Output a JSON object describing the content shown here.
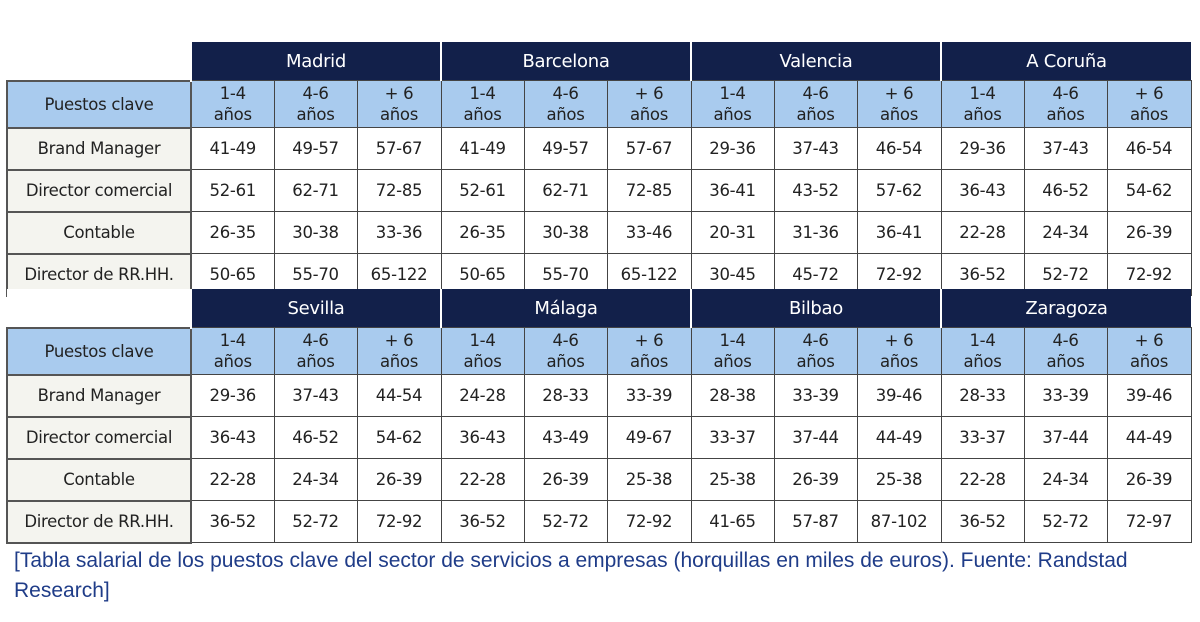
{
  "row_header": "Puestos clave",
  "sub_headers": [
    [
      "1-4",
      "años"
    ],
    [
      "4-6",
      "años"
    ],
    [
      "+ 6",
      "años"
    ]
  ],
  "positions": [
    "Brand Manager",
    "Director comercial",
    "Contable",
    "Director de RR.HH."
  ],
  "tables": [
    {
      "cities": [
        {
          "name": "Madrid",
          "rows": [
            [
              "41-49",
              "49-57",
              "57-67"
            ],
            [
              "52-61",
              "62-71",
              "72-85"
            ],
            [
              "26-35",
              "30-38",
              "33-36"
            ],
            [
              "50-65",
              "55-70",
              "65-122"
            ]
          ]
        },
        {
          "name": "Barcelona",
          "rows": [
            [
              "41-49",
              "49-57",
              "57-67"
            ],
            [
              "52-61",
              "62-71",
              "72-85"
            ],
            [
              "26-35",
              "30-38",
              "33-46"
            ],
            [
              "50-65",
              "55-70",
              "65-122"
            ]
          ]
        },
        {
          "name": "Valencia",
          "rows": [
            [
              "29-36",
              "37-43",
              "46-54"
            ],
            [
              "36-41",
              "43-52",
              "57-62"
            ],
            [
              "20-31",
              "31-36",
              "36-41"
            ],
            [
              "30-45",
              "45-72",
              "72-92"
            ]
          ]
        },
        {
          "name": "A Coruña",
          "rows": [
            [
              "29-36",
              "37-43",
              "46-54"
            ],
            [
              "36-43",
              "46-52",
              "54-62"
            ],
            [
              "22-28",
              "24-34",
              "26-39"
            ],
            [
              "36-52",
              "52-72",
              "72-92"
            ]
          ]
        }
      ]
    },
    {
      "cities": [
        {
          "name": "Sevilla",
          "rows": [
            [
              "29-36",
              "37-43",
              "44-54"
            ],
            [
              "36-43",
              "46-52",
              "54-62"
            ],
            [
              "22-28",
              "24-34",
              "26-39"
            ],
            [
              "36-52",
              "52-72",
              "72-92"
            ]
          ]
        },
        {
          "name": "Málaga",
          "rows": [
            [
              "24-28",
              "28-33",
              "33-39"
            ],
            [
              "36-43",
              "43-49",
              "49-67"
            ],
            [
              "22-28",
              "26-39",
              "25-38"
            ],
            [
              "36-52",
              "52-72",
              "72-92"
            ]
          ]
        },
        {
          "name": "Bilbao",
          "rows": [
            [
              "28-38",
              "33-39",
              "39-46"
            ],
            [
              "33-37",
              "37-44",
              "44-49"
            ],
            [
              "25-38",
              "26-39",
              "25-38"
            ],
            [
              "41-65",
              "57-87",
              "87-102"
            ]
          ]
        },
        {
          "name": "Zaragoza",
          "rows": [
            [
              "28-33",
              "33-39",
              "39-46"
            ],
            [
              "33-37",
              "37-44",
              "44-49"
            ],
            [
              "22-28",
              "24-34",
              "26-39"
            ],
            [
              "36-52",
              "52-72",
              "72-97"
            ]
          ]
        }
      ]
    }
  ],
  "caption": "[Tabla salarial de los puestos clave del sector de servicios a empresas (horquillas en miles de euros). Fuente: Randstad Research]",
  "colors": {
    "city_header": "#12204a",
    "sub_header": "#a9cbee",
    "first_col": "#f4f4ef",
    "caption": "#1f3c88"
  }
}
